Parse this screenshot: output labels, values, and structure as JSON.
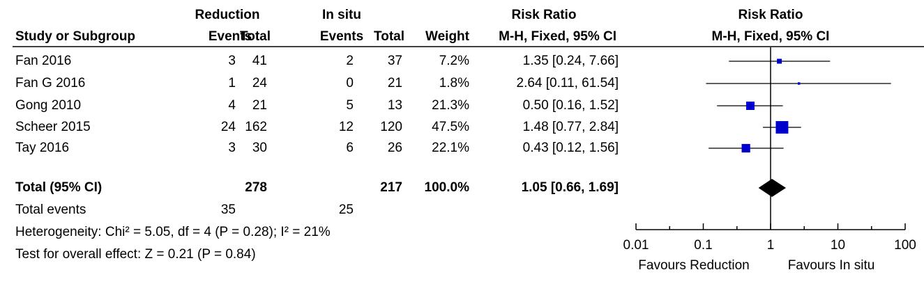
{
  "chart_data": {
    "type": "forest",
    "group_headers": [
      "Reduction",
      "In situ",
      "Risk Ratio"
    ],
    "headers": [
      "Study or Subgroup",
      "Events",
      "Total",
      "Events",
      "Total",
      "Weight",
      "M-H, Fixed, 95% CI"
    ],
    "plot_headers": [
      "Risk Ratio",
      "M-H, Fixed, 95% CI"
    ],
    "categories": [
      "Fan 2016",
      "Fan G 2016",
      "Gong 2010",
      "Scheer 2015",
      "Tay 2016"
    ],
    "reduction_events": [
      3,
      1,
      4,
      24,
      3
    ],
    "reduction_total": [
      41,
      24,
      21,
      162,
      30
    ],
    "insitu_events": [
      2,
      0,
      5,
      12,
      6
    ],
    "insitu_total": [
      37,
      21,
      13,
      120,
      26
    ],
    "weights": [
      7.2,
      1.8,
      21.3,
      47.5,
      22.1
    ],
    "weight_labels": [
      "7.2%",
      "1.8%",
      "21.3%",
      "47.5%",
      "22.1%"
    ],
    "values": [
      1.35,
      2.64,
      0.5,
      1.48,
      0.43
    ],
    "lower": [
      0.24,
      0.11,
      0.16,
      0.77,
      0.12
    ],
    "upper": [
      7.66,
      61.54,
      1.52,
      2.84,
      1.56
    ],
    "value_labels": [
      "1.35 [0.24, 7.66]",
      "2.64 [0.11, 61.54]",
      "0.50 [0.16, 1.52]",
      "1.48 [0.77, 2.84]",
      "0.43 [0.12, 1.56]"
    ],
    "total": {
      "label": "Total (95% CI)",
      "reduction_total": 278,
      "insitu_total": 217,
      "weight_label": "100.0%",
      "value": 1.05,
      "lower": 0.66,
      "upper": 1.69,
      "value_label": "1.05 [0.66, 1.69]"
    },
    "total_events": {
      "label": "Total events",
      "reduction": 35,
      "insitu": 25
    },
    "heterogeneity": "Heterogeneity: Chi² = 5.05, df = 4 (P = 0.28); I² = 21%",
    "overall_effect": "Test for overall effect: Z = 0.21 (P = 0.84)",
    "log_scale": true,
    "xlim": [
      0.01,
      100
    ],
    "xticks": [
      0.01,
      0.1,
      1,
      10,
      100
    ],
    "x_labels": [
      "Favours Reduction",
      "Favours In situ"
    ],
    "color": "#0000cc"
  }
}
